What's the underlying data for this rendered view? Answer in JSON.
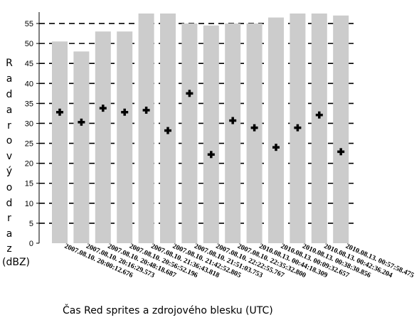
{
  "chart_data": {
    "type": "bar",
    "categories": [
      "2007.08.10. 20:00:12.676",
      "2007.08.10. 20:16:29.573",
      "2007.08.10. 20:48:18.687",
      "2007.08.10. 20:56:52.196",
      "2007.08.10. 21:36:43.818",
      "2007.08.10. 21:42:52.805",
      "2007.08.10. 21:51:03.753",
      "2007.08.10. 22:22:55.767",
      "2007.08.10. 22:35:32.800",
      "2010.08.13. 00:44:18.309",
      "2010.08.13. 00:09:32.657",
      "2010.08.13. 00:38:30.856",
      "2010.08.13. 00:42:36.204",
      "2010.08.13. 00:57:58.475"
    ],
    "series": [
      {
        "type": "bar",
        "color": "#cccccc",
        "values": [
          50.5,
          48,
          53,
          53,
          57.5,
          57.5,
          55,
          54.5,
          55,
          55,
          56.5,
          57.5,
          57.5,
          57
        ]
      },
      {
        "type": "marker",
        "marker": "cross",
        "color": "#000000",
        "values": [
          32.8,
          30.3,
          33.8,
          32.8,
          33.3,
          28.2,
          37.5,
          22.2,
          30.7,
          28.9,
          24,
          28.9,
          32.1,
          22.9
        ]
      }
    ],
    "ylabel_letters": [
      "R",
      "a",
      "d",
      "a",
      "r",
      "o",
      "v",
      "ý",
      "o",
      "d",
      "r",
      "a",
      "z"
    ],
    "ylabel_unit": "(dBZ)",
    "xlabel": "Čas Red sprites a zdrojového blesku (UTC)",
    "ylim": [
      0,
      57.5
    ],
    "yticks": [
      0,
      5,
      10,
      15,
      20,
      25,
      30,
      35,
      40,
      45,
      50,
      55
    ],
    "grid": "dashed horizontal"
  }
}
